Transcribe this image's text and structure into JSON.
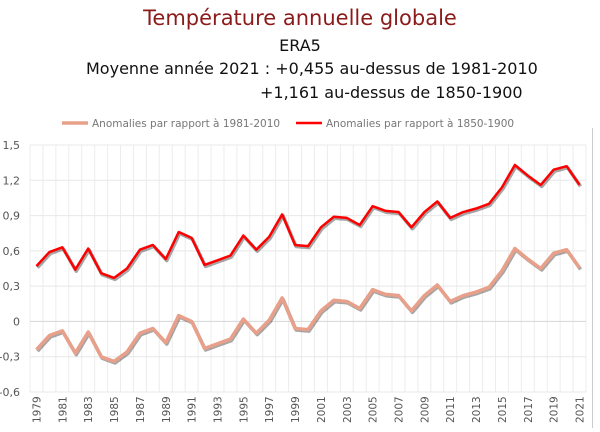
{
  "header": {
    "title": "Température annuelle globale",
    "subtitle": "ERA5",
    "line1": "Moyenne année 2021 : +0,455 au-dessus de 1981-2010",
    "line2": "+1,161 au-dessus de 1850-1900"
  },
  "chart_data": {
    "type": "line",
    "title": "Température annuelle globale",
    "x": [
      1979,
      1980,
      1981,
      1982,
      1983,
      1984,
      1985,
      1986,
      1987,
      1988,
      1989,
      1990,
      1991,
      1992,
      1993,
      1994,
      1995,
      1996,
      1997,
      1998,
      1999,
      2000,
      2001,
      2002,
      2003,
      2004,
      2005,
      2006,
      2007,
      2008,
      2009,
      2010,
      2011,
      2012,
      2013,
      2014,
      2015,
      2016,
      2017,
      2018,
      2019,
      2020,
      2021
    ],
    "xticks": [
      1979,
      1981,
      1983,
      1985,
      1987,
      1989,
      1991,
      1993,
      1995,
      1997,
      1999,
      2001,
      2003,
      2005,
      2007,
      2009,
      2011,
      2013,
      2015,
      2017,
      2019,
      2021
    ],
    "yticks": [
      "-0,6",
      "-0,3",
      "0",
      "0,3",
      "0,6",
      "0,9",
      "1,2",
      "1,5"
    ],
    "ylim": [
      -0.6,
      1.5
    ],
    "grid": true,
    "legend_position": "top",
    "series": [
      {
        "name": "Anomalies par rapport à 1981-2010",
        "color": "#e8a08a",
        "values": [
          -0.24,
          -0.12,
          -0.08,
          -0.27,
          -0.09,
          -0.3,
          -0.34,
          -0.26,
          -0.1,
          -0.06,
          -0.18,
          0.05,
          0.0,
          -0.23,
          -0.19,
          -0.15,
          0.02,
          -0.1,
          0.01,
          0.2,
          -0.06,
          -0.07,
          0.09,
          0.18,
          0.17,
          0.11,
          0.27,
          0.23,
          0.22,
          0.09,
          0.22,
          0.31,
          0.17,
          0.22,
          0.25,
          0.29,
          0.43,
          0.62,
          0.53,
          0.45,
          0.58,
          0.61,
          0.455
        ]
      },
      {
        "name": "Anomalies par rapport à 1850-1900",
        "color": "#ff0000",
        "values": [
          0.47,
          0.59,
          0.63,
          0.44,
          0.62,
          0.41,
          0.37,
          0.45,
          0.61,
          0.65,
          0.53,
          0.76,
          0.71,
          0.48,
          0.52,
          0.56,
          0.73,
          0.61,
          0.72,
          0.91,
          0.65,
          0.64,
          0.8,
          0.89,
          0.88,
          0.82,
          0.98,
          0.94,
          0.93,
          0.8,
          0.93,
          1.02,
          0.88,
          0.93,
          0.96,
          1.0,
          1.14,
          1.33,
          1.24,
          1.16,
          1.29,
          1.32,
          1.161
        ]
      }
    ]
  }
}
